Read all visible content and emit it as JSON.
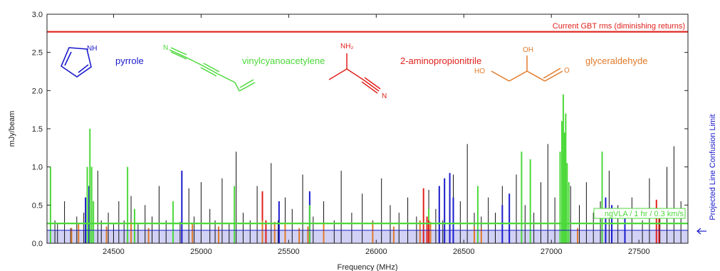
{
  "chart_data": {
    "type": "bar",
    "xlabel": "Frequency (MHz)",
    "ylabel": "mJy/beam",
    "xlim": [
      24120,
      27780
    ],
    "ylim": [
      0,
      3.0
    ],
    "x_ticks": [
      24500,
      25000,
      25500,
      26000,
      26500,
      27000,
      27500
    ],
    "y_ticks": [
      0.0,
      0.5,
      1.0,
      1.5,
      2.0,
      2.5,
      3.0
    ],
    "reference_lines": [
      {
        "label": "Current GBT rms (diminishing returns)",
        "y": 2.77,
        "color": "#e0201b"
      },
      {
        "label": "ngVLA / 1 hr / 0.3 km/s",
        "y": 0.26,
        "color": "#4cd93a"
      }
    ],
    "confusion_limit": {
      "label": "Projected Line Confusion Limit",
      "y": 0.17,
      "color": "#1a1acc",
      "fill": "#9898e8"
    },
    "molecules": [
      {
        "name": "pyrrole",
        "color": "#1a1acc",
        "atom_labels": [
          "NH"
        ]
      },
      {
        "name": "vinylcyanoacetylene",
        "color": "#4cd93a",
        "atom_labels": [
          "N"
        ]
      },
      {
        "name": "2-aminopropionitrile",
        "color": "#e0201b",
        "atom_labels": [
          "NH₂",
          "N"
        ]
      },
      {
        "name": "glyceraldehyde",
        "color": "#e07a2a",
        "atom_labels": [
          "HO",
          "OH",
          "O"
        ]
      }
    ],
    "series": [
      {
        "name": "background",
        "color": "#111111",
        "x": [
          24140,
          24165,
          24180,
          24220,
          24255,
          24290,
          24330,
          24350,
          24410,
          24430,
          24470,
          24500,
          24530,
          24560,
          24600,
          24640,
          24680,
          24720,
          24760,
          24800,
          24840,
          24880,
          24930,
          24960,
          25000,
          25050,
          25080,
          25120,
          25160,
          25200,
          25240,
          25280,
          25320,
          25400,
          25440,
          25480,
          25520,
          25580,
          25640,
          25700,
          25760,
          25800,
          25860,
          25920,
          25980,
          26030,
          26080,
          26130,
          26180,
          26230,
          26300,
          26340,
          26380,
          26440,
          26480,
          26520,
          26560,
          26600,
          26640,
          26680,
          26720,
          26760,
          26800,
          26850,
          26900,
          26940,
          26980,
          27020,
          27110,
          27160,
          27200,
          27240,
          27280,
          27330,
          27380,
          27420,
          27460,
          27520,
          27560,
          27620,
          27660,
          27700,
          27740
        ],
        "y": [
          0.45,
          0.3,
          0.25,
          0.55,
          0.2,
          0.35,
          0.4,
          0.25,
          0.95,
          0.3,
          0.4,
          0.25,
          0.55,
          0.3,
          0.62,
          0.25,
          0.5,
          0.35,
          0.75,
          0.3,
          0.55,
          0.28,
          0.72,
          0.35,
          0.8,
          0.45,
          0.3,
          0.85,
          0.25,
          1.2,
          0.4,
          0.3,
          0.75,
          1.05,
          0.3,
          0.6,
          0.45,
          0.9,
          0.35,
          0.55,
          0.3,
          0.95,
          0.4,
          0.65,
          0.3,
          0.85,
          0.5,
          0.4,
          0.6,
          0.35,
          0.7,
          0.45,
          0.3,
          0.9,
          0.55,
          1.3,
          0.4,
          0.35,
          0.6,
          0.4,
          0.75,
          0.55,
          0.9,
          0.5,
          0.4,
          0.8,
          1.3,
          0.6,
          0.75,
          0.5,
          0.8,
          0.4,
          0.55,
          0.95,
          0.5,
          0.35,
          0.6,
          0.3,
          0.85,
          0.45,
          1.0,
          1.27,
          0.55
        ]
      },
      {
        "name": "pyrrole",
        "color": "#1a1acc",
        "x": [
          24340,
          24360,
          24890,
          25445,
          25620,
          26360,
          26390,
          26420,
          26440,
          26720,
          26760,
          27310,
          27345,
          27420
        ],
        "y": [
          0.6,
          0.75,
          0.95,
          0.55,
          0.68,
          0.75,
          0.85,
          0.92,
          0.6,
          0.5,
          0.65,
          0.6,
          0.5,
          0.35
        ]
      },
      {
        "name": "vinylcyanoacetylene",
        "color": "#4cd93a",
        "x": [
          24140,
          24350,
          24365,
          24375,
          24385,
          24580,
          24620,
          24840,
          25190,
          25620,
          26300,
          26580,
          26830,
          26880,
          27050,
          27060,
          27068,
          27075,
          27082,
          27090,
          27100,
          27290
        ],
        "y": [
          1.0,
          1.0,
          1.5,
          1.0,
          0.55,
          1.0,
          0.45,
          0.55,
          0.75,
          0.5,
          0.45,
          0.75,
          1.2,
          1.1,
          1.2,
          1.6,
          1.95,
          1.45,
          1.7,
          1.05,
          0.8,
          1.2
        ]
      },
      {
        "name": "2-aminopropionitrile",
        "color": "#e0201b",
        "x": [
          25350,
          25370,
          26270,
          26290,
          26300,
          27600,
          27615
        ],
        "y": [
          0.68,
          0.3,
          0.72,
          0.35,
          0.3,
          0.57,
          0.45
        ]
      },
      {
        "name": "glyceraldehyde",
        "color": "#e07a2a",
        "x": [
          24260,
          24300,
          24460,
          24600,
          24700,
          24950,
          25100,
          25350,
          25420,
          25480,
          25560,
          25610,
          25700,
          25980,
          26100,
          26250,
          26310,
          26560,
          26600,
          27150
        ],
        "y": [
          0.2,
          0.25,
          0.22,
          0.28,
          0.2,
          0.25,
          0.22,
          0.3,
          0.28,
          0.25,
          0.2,
          0.22,
          0.25,
          0.28,
          0.22,
          0.3,
          0.28,
          0.22,
          0.2,
          0.2
        ]
      }
    ]
  }
}
